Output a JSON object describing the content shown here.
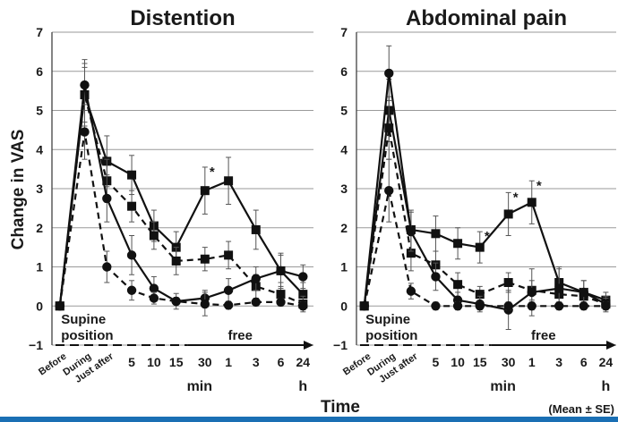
{
  "figure": {
    "ylabel": "Change in VAS",
    "xlabel": "Time",
    "note": "(Mean ± SE)",
    "accent_color": "#1a6fb4"
  },
  "chart_data": [
    {
      "type": "line",
      "title": "Distention",
      "ylabel": "Change in VAS",
      "ylim": [
        -1,
        7
      ],
      "yticks": [
        -1,
        0,
        1,
        2,
        3,
        4,
        5,
        6,
        7
      ],
      "grid": true,
      "categories": [
        "Before",
        "During",
        "Just after",
        "5",
        "10",
        "15",
        "30",
        "1",
        "3",
        "6",
        "24"
      ],
      "unit_labels": [
        "min",
        "h"
      ],
      "phase_labels": [
        "Supine",
        "position",
        "free"
      ],
      "series": [
        {
          "marker": "square",
          "dash": "solid",
          "values": [
            0,
            5.4,
            3.7,
            3.35,
            2.05,
            1.5,
            2.95,
            3.2,
            1.95,
            0.9,
            0.3
          ],
          "errors": [
            0,
            0.7,
            0.65,
            0.5,
            0.4,
            0.4,
            0.6,
            0.6,
            0.5,
            0.45,
            0.3
          ],
          "stars": [
            6
          ]
        },
        {
          "marker": "square",
          "dash": "dashed",
          "values": [
            0,
            5.4,
            3.2,
            2.55,
            1.8,
            1.15,
            1.2,
            1.3,
            0.5,
            0.3,
            0.05
          ],
          "errors": [
            0,
            0.8,
            0.55,
            0.4,
            0.35,
            0.35,
            0.3,
            0.35,
            0.3,
            0.3,
            0.2
          ],
          "stars": []
        },
        {
          "marker": "circle",
          "dash": "solid",
          "values": [
            0,
            5.65,
            2.75,
            1.3,
            0.45,
            0.12,
            0.2,
            0.4,
            0.7,
            0.9,
            0.75
          ],
          "errors": [
            0,
            0.65,
            0.6,
            0.5,
            0.3,
            0.2,
            0.2,
            0.3,
            0.3,
            0.4,
            0.3
          ],
          "stars": []
        },
        {
          "marker": "circle",
          "dash": "dashed",
          "values": [
            0,
            4.45,
            1.0,
            0.4,
            0.2,
            0.12,
            0.05,
            0.02,
            0.1,
            0.1,
            0.0
          ],
          "errors": [
            0,
            0.7,
            0.4,
            0.25,
            0.15,
            0.1,
            0.3,
            0.1,
            0.1,
            0.1,
            0.1
          ],
          "stars": []
        }
      ]
    },
    {
      "type": "line",
      "title": "Abdominal pain",
      "ylim": [
        -1,
        7
      ],
      "yticks": [
        -1,
        0,
        1,
        2,
        3,
        4,
        5,
        6,
        7
      ],
      "grid": true,
      "categories": [
        "Before",
        "During",
        "Just after",
        "5",
        "10",
        "15",
        "30",
        "1",
        "3",
        "6",
        "24"
      ],
      "unit_labels": [
        "min",
        "h"
      ],
      "phase_labels": [
        "Supine",
        "position",
        "free"
      ],
      "series": [
        {
          "marker": "square",
          "dash": "solid",
          "values": [
            0,
            5.0,
            1.95,
            1.85,
            1.6,
            1.5,
            2.35,
            2.65,
            0.6,
            0.35,
            0.15
          ],
          "errors": [
            0,
            0.8,
            0.5,
            0.45,
            0.4,
            0.4,
            0.55,
            0.55,
            0.4,
            0.3,
            0.2
          ],
          "stars": [
            5,
            6,
            7
          ]
        },
        {
          "marker": "square",
          "dash": "dashed",
          "values": [
            0,
            4.55,
            1.35,
            1.05,
            0.55,
            0.3,
            0.6,
            0.4,
            0.3,
            0.25,
            0.05
          ],
          "errors": [
            0,
            0.8,
            0.45,
            0.35,
            0.3,
            0.2,
            0.25,
            0.25,
            0.2,
            0.2,
            0.15
          ],
          "stars": []
        },
        {
          "marker": "circle",
          "dash": "solid",
          "values": [
            0,
            5.95,
            1.9,
            0.75,
            0.15,
            0.05,
            -0.1,
            0.35,
            0.45,
            0.35,
            0.05
          ],
          "errors": [
            0,
            0.7,
            0.5,
            0.35,
            0.2,
            0.2,
            0.5,
            0.6,
            0.5,
            0.3,
            0.2
          ],
          "stars": []
        },
        {
          "marker": "circle",
          "dash": "dashed",
          "values": [
            0,
            2.95,
            0.38,
            0.0,
            0.0,
            0.0,
            0.0,
            0.0,
            0.0,
            0.0,
            0.0
          ],
          "errors": [
            0,
            0.8,
            0.2,
            0.1,
            0.1,
            0.1,
            0.1,
            0.1,
            0.1,
            0.1,
            0.1
          ],
          "stars": []
        }
      ]
    }
  ]
}
